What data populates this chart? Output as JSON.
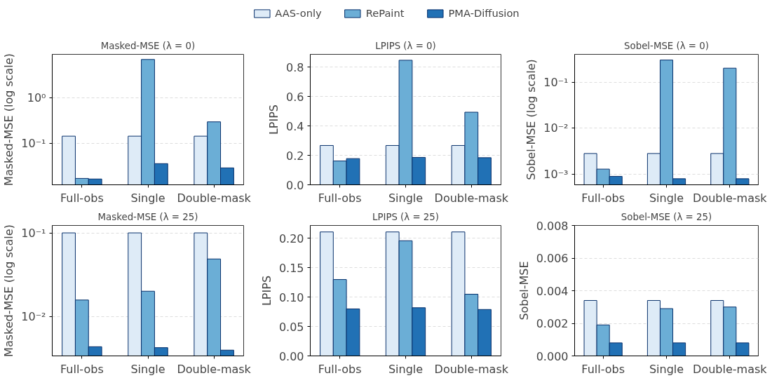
{
  "chart_data": [
    {
      "type": "bar",
      "title": "Masked-MSE (λ = 0)",
      "ylabel": "Masked-MSE (log scale)",
      "categories": [
        "Full-obs",
        "Single",
        "Double-mask"
      ],
      "log": "y",
      "ylim": [
        0.0123,
        9.2
      ],
      "yticks": [
        {
          "value": 0.1,
          "label": "10⁻¹"
        },
        {
          "value": 1,
          "label": "10⁰"
        }
      ],
      "grid": "y",
      "legend": "top",
      "series": [
        {
          "name": "AAS-only",
          "color": "#deebf7",
          "values": [
            0.145,
            0.145,
            0.145
          ]
        },
        {
          "name": "RePaint",
          "color": "#6baed6",
          "values": [
            0.017,
            7.1,
            0.3
          ]
        },
        {
          "name": "PMA-Diffusion",
          "color": "#2171b5",
          "values": [
            0.0165,
            0.036,
            0.029
          ]
        }
      ]
    },
    {
      "type": "bar",
      "title": "LPIPS (λ = 0)",
      "ylabel": "LPIPS",
      "categories": [
        "Full-obs",
        "Single",
        "Double-mask"
      ],
      "ylim": [
        0,
        0.886
      ],
      "yticks": [
        {
          "value": 0,
          "label": "0.0"
        },
        {
          "value": 0.2,
          "label": "0.2"
        },
        {
          "value": 0.4,
          "label": "0.4"
        },
        {
          "value": 0.6,
          "label": "0.6"
        },
        {
          "value": 0.8,
          "label": "0.8"
        }
      ],
      "grid": "y",
      "series": [
        {
          "color": "#deebf7",
          "values": [
            0.267,
            0.267,
            0.267
          ]
        },
        {
          "color": "#6baed6",
          "values": [
            0.162,
            0.846,
            0.493
          ]
        },
        {
          "color": "#2171b5",
          "values": [
            0.178,
            0.186,
            0.184
          ]
        }
      ]
    },
    {
      "type": "bar",
      "title": "Sobel-MSE (λ = 0)",
      "ylabel": "Sobel-MSE (log scale)",
      "categories": [
        "Full-obs",
        "Single",
        "Double-mask"
      ],
      "log": "y",
      "ylim": [
        0.000583,
        0.404
      ],
      "yticks": [
        {
          "value": 0.001,
          "label": "10⁻³"
        },
        {
          "value": 0.01,
          "label": "10⁻²"
        },
        {
          "value": 0.1,
          "label": "10⁻¹"
        }
      ],
      "grid": "y",
      "series": [
        {
          "color": "#deebf7",
          "values": [
            0.0028,
            0.0028,
            0.0028
          ]
        },
        {
          "color": "#6baed6",
          "values": [
            0.00128,
            0.304,
            0.202
          ]
        },
        {
          "color": "#2171b5",
          "values": [
            0.00089,
            0.00079,
            0.00079
          ]
        }
      ]
    },
    {
      "type": "bar",
      "title": "Masked-MSE (λ = 25)",
      "ylabel": "Masked-MSE (log scale)",
      "categories": [
        "Full-obs",
        "Single",
        "Double-mask"
      ],
      "log": "y",
      "ylim": [
        0.00336,
        0.1227
      ],
      "yticks": [
        {
          "value": 0.01,
          "label": "10⁻²"
        },
        {
          "value": 0.1,
          "label": "10⁻¹"
        }
      ],
      "grid": "y",
      "series": [
        {
          "color": "#deebf7",
          "values": [
            0.1,
            0.1,
            0.1
          ]
        },
        {
          "color": "#6baed6",
          "values": [
            0.0157,
            0.02,
            0.0487
          ]
        },
        {
          "color": "#2171b5",
          "values": [
            0.00433,
            0.00422,
            0.00394
          ]
        }
      ]
    },
    {
      "type": "bar",
      "title": "LPIPS (λ = 25)",
      "ylabel": "LPIPS",
      "categories": [
        "Full-obs",
        "Single",
        "Double-mask"
      ],
      "ylim": [
        0,
        0.222
      ],
      "yticks": [
        {
          "value": 0,
          "label": "0.00"
        },
        {
          "value": 0.05,
          "label": "0.05"
        },
        {
          "value": 0.1,
          "label": "0.10"
        },
        {
          "value": 0.15,
          "label": "0.15"
        },
        {
          "value": 0.2,
          "label": "0.20"
        }
      ],
      "grid": "y",
      "series": [
        {
          "color": "#deebf7",
          "values": [
            0.211,
            0.211,
            0.211
          ]
        },
        {
          "color": "#6baed6",
          "values": [
            0.13,
            0.196,
            0.105
          ]
        },
        {
          "color": "#2171b5",
          "values": [
            0.08,
            0.082,
            0.079
          ]
        }
      ]
    },
    {
      "type": "bar",
      "title": "Sobel-MSE (λ = 25)",
      "ylabel": "Sobel-MSE",
      "categories": [
        "Full-obs",
        "Single",
        "Double-mask"
      ],
      "ylim": [
        0,
        0.008
      ],
      "yticks": [
        {
          "value": 0,
          "label": "0.000"
        },
        {
          "value": 0.002,
          "label": "0.002"
        },
        {
          "value": 0.004,
          "label": "0.004"
        },
        {
          "value": 0.006,
          "label": "0.006"
        },
        {
          "value": 0.008,
          "label": "0.008"
        }
      ],
      "grid": "y",
      "series": [
        {
          "color": "#deebf7",
          "values": [
            0.0034,
            0.0034,
            0.0034
          ]
        },
        {
          "color": "#6baed6",
          "values": [
            0.0019,
            0.0029,
            0.003
          ]
        },
        {
          "color": "#2171b5",
          "values": [
            0.0008,
            0.0008,
            0.0008
          ]
        }
      ]
    }
  ]
}
